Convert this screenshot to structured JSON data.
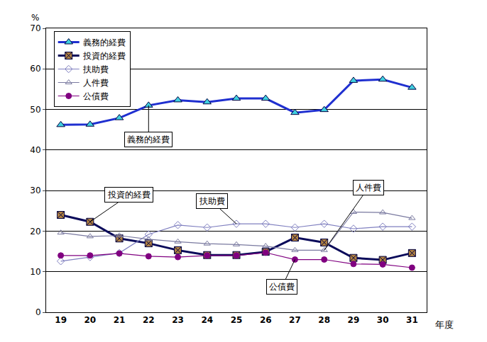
{
  "chart_data": {
    "type": "line",
    "y_label": "%",
    "x_label": "年度",
    "categories": [
      "19",
      "20",
      "21",
      "22",
      "23",
      "24",
      "25",
      "26",
      "27",
      "28",
      "29",
      "30",
      "31"
    ],
    "series": [
      {
        "name": "義務的経費",
        "color": "#1f2fd0",
        "marker": "triangle-up",
        "values": [
          46.2,
          46.3,
          47.9,
          51.0,
          52.3,
          51.8,
          52.7,
          52.7,
          49.2,
          49.9,
          57.1,
          57.4,
          55.4
        ]
      },
      {
        "name": "投資的経費",
        "color": "#0a0a5a",
        "marker": "square-x",
        "values": [
          24.0,
          22.3,
          18.2,
          17.0,
          15.3,
          14.1,
          14.1,
          14.9,
          18.4,
          17.2,
          13.4,
          12.9,
          14.6
        ]
      },
      {
        "name": "扶助費",
        "color": "#8080c0",
        "marker": "diamond-open",
        "values": [
          12.6,
          13.6,
          14.6,
          19.2,
          21.5,
          20.9,
          21.8,
          21.8,
          20.9,
          21.8,
          20.6,
          21.1,
          21.1
        ]
      },
      {
        "name": "人件費",
        "color": "#7a7aa0",
        "marker": "triangle-up-open",
        "values": [
          19.6,
          18.7,
          18.9,
          18.0,
          17.4,
          16.9,
          16.7,
          16.3,
          15.3,
          15.3,
          24.7,
          24.6,
          23.2
        ]
      },
      {
        "name": "公債費",
        "color": "#800080",
        "marker": "circle",
        "values": [
          14.0,
          14.0,
          14.5,
          13.8,
          13.6,
          14.0,
          14.0,
          14.7,
          13.0,
          13.0,
          11.9,
          11.8,
          11.0
        ]
      }
    ],
    "annotations": [
      {
        "text": "義務的経費",
        "x": "22",
        "y": 51.0
      },
      {
        "text": "投資的経費",
        "x": "20",
        "y": 22.3
      },
      {
        "text": "扶助費",
        "x": "25",
        "y": 21.8
      },
      {
        "text": "人件費",
        "x": "28",
        "y": 15.3
      },
      {
        "text": "公債費",
        "x": "27",
        "y": 13.0
      }
    ],
    "ylim": [
      0,
      70
    ],
    "yticks": [
      0,
      10,
      20,
      30,
      40,
      50,
      60,
      70
    ],
    "grid": true,
    "legend": "upper left"
  }
}
